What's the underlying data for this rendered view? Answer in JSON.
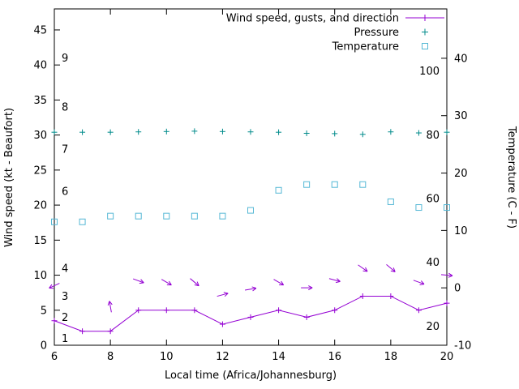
{
  "figure": {
    "background": "#ffffff",
    "border_color": "#000000",
    "text_color": "#000000"
  },
  "axes": {
    "x_label": "Local time (Africa/Johannesburg)",
    "y_left_label": "Wind speed (kt - Beaufort)",
    "y_right_label": "Temperature (C - F)"
  },
  "legend": [
    {
      "label": "Wind speed, gusts, and direction",
      "style": "line+plus",
      "color": "#9400d3"
    },
    {
      "label": "Pressure",
      "style": "plus",
      "color": "#008b8b"
    },
    {
      "label": "Temperature",
      "style": "square",
      "color": "#55b8d5"
    }
  ],
  "chart_data": {
    "type": "line",
    "title": "",
    "xlabel": "Local time (Africa/Johannesburg)",
    "ylabel_left": "Wind speed (kt - Beaufort)",
    "ylabel_right": "Temperature (C - F)",
    "grid": false,
    "legend_position": "top-right-inside",
    "x_range": [
      6,
      20
    ],
    "y_left_range": [
      0,
      48
    ],
    "y_right_range": [
      -10,
      48.6
    ],
    "x_ticks": [
      6,
      8,
      10,
      12,
      14,
      16,
      18,
      20
    ],
    "y_left_ticks": [
      0,
      5,
      10,
      15,
      20,
      25,
      30,
      35,
      40,
      45
    ],
    "y_right_ticks": [
      -10,
      0,
      10,
      20,
      30,
      40
    ],
    "beaufort_scale_labels": [
      {
        "text": "9",
        "kt": 41
      },
      {
        "text": "8",
        "kt": 34
      },
      {
        "text": "7",
        "kt": 28
      },
      {
        "text": "6",
        "kt": 22
      },
      {
        "text": "4",
        "kt": 11
      },
      {
        "text": "3",
        "kt": 7
      },
      {
        "text": "2",
        "kt": 4
      },
      {
        "text": "1",
        "kt": 1
      }
    ],
    "fahrenheit_scale_labels": [
      {
        "text": "100",
        "f": 100
      },
      {
        "text": "80",
        "f": 80
      },
      {
        "text": "60",
        "f": 60
      },
      {
        "text": "40",
        "f": 40
      },
      {
        "text": "20",
        "f": 20
      }
    ],
    "x_hours": [
      6,
      7,
      8,
      9,
      10,
      11,
      12,
      13,
      14,
      15,
      16,
      17,
      18,
      19,
      20
    ],
    "series": [
      {
        "key": "wind_speed",
        "name": "Wind speed (kt)",
        "legend_label": "Wind speed, gusts, and direction",
        "axis": "left",
        "color": "#9400d3",
        "style": "line+plus",
        "values": [
          3.5,
          2,
          2,
          5,
          5,
          5,
          3,
          4,
          5,
          4,
          5,
          7,
          7,
          5,
          6
        ]
      },
      {
        "key": "wind_gusts",
        "name": "Wind gusts with direction arrows (kt)",
        "axis": "left",
        "color": "#9400d3",
        "style": "arrows",
        "values": [
          8.5,
          null,
          5.5,
          9.2,
          9,
          9,
          7.2,
          8,
          9,
          8.2,
          9.3,
          11,
          11,
          9,
          10
        ],
        "directions_deg": [
          205,
          null,
          100,
          -20,
          -30,
          -40,
          15,
          10,
          -30,
          0,
          -15,
          -35,
          -40,
          -20,
          -5
        ]
      },
      {
        "key": "pressure",
        "name": "Pressure",
        "axis": "left",
        "color": "#008b8b",
        "style": "plus",
        "scale_note": "pressure scale not labeled in plot; values are plotted positions in left-axis units",
        "values": [
          30.4,
          30.4,
          30.4,
          30.45,
          30.5,
          30.55,
          30.5,
          30.45,
          30.4,
          30.25,
          30.2,
          30.1,
          30.45,
          30.3,
          30.4
        ]
      },
      {
        "key": "temperature",
        "name": "Temperature (C)",
        "axis": "right",
        "color": "#55b8d5",
        "style": "open-square",
        "values": [
          11.5,
          11.5,
          12.5,
          12.5,
          12.5,
          12.5,
          12.5,
          13.5,
          17,
          18,
          18,
          18,
          15,
          14,
          14
        ]
      }
    ]
  }
}
